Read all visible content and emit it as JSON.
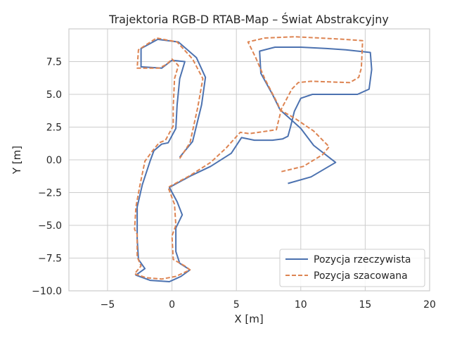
{
  "chart_data": {
    "type": "line",
    "title": "Trajektoria RGB-D RTAB-Map – Świat Abstrakcyjny",
    "xlabel": "X [m]",
    "ylabel": "Y [m]",
    "xlim": [
      -8,
      20
    ],
    "ylim": [
      -10,
      10
    ],
    "xticks": [
      -5,
      0,
      5,
      10,
      15,
      20
    ],
    "yticks": [
      -10,
      -7.5,
      -5,
      -2.5,
      0,
      2.5,
      5,
      7.5
    ],
    "xtick_labels": [
      "−5",
      "0",
      "5",
      "10",
      "15",
      "20"
    ],
    "ytick_labels": [
      "−10.0",
      "−7.5",
      "−5.0",
      "−2.5",
      "0.0",
      "2.5",
      "5.0",
      "7.5"
    ],
    "grid": true,
    "legend_position": "lower-right",
    "series": [
      {
        "name": "Pozycja rzeczywista",
        "color": "#4c72b0",
        "style": "solid",
        "x": [
          9.0,
          10.8,
          12.7,
          11.0,
          10.0,
          8.8,
          8.6,
          9.3,
          7.8,
          6.0,
          5.4,
          4.5,
          3.0,
          1.5,
          -0.2,
          0.4,
          0.8,
          0.3,
          0.4,
          1.0,
          1.4,
          0.7,
          -0.4,
          -1.8,
          -2.8,
          -2.7,
          -2.7,
          -2.3,
          -2.1,
          -1.7,
          -1.0,
          -0.5,
          0.3,
          1.5,
          2.1,
          2.5,
          2.6,
          1.9,
          0.4,
          -1.2,
          -2.3,
          -2.4,
          -1.0,
          0.0,
          1.1,
          0.3,
          0.2,
          0.6,
          1.5
        ],
        "y": [
          -1.8,
          -1.3,
          -0.2,
          1.1,
          2.4,
          3.5,
          3.9,
          4.5,
          5.0,
          6.5,
          7.6,
          8.3,
          8.6,
          8.5,
          7.6,
          7.6,
          7.4,
          6.8,
          5.5,
          4.5,
          3.3,
          2.0,
          1.2,
          0.0,
          -1.7,
          -2.8,
          -4.8,
          -5.9,
          -7.3,
          -8.3,
          -8.8,
          -9.0,
          -9.3,
          -9.2,
          -8.3,
          -7.5,
          -7.0,
          -6.2,
          -5.3,
          -4.3,
          -2.7,
          -1.3,
          -0.8,
          -0.2,
          0.5,
          1.5,
          2.5,
          4.0,
          5.2
        ],
        "xpath": [
          9.0,
          10.8,
          12.7,
          11.0,
          10.0,
          9.3,
          8.6,
          7.8,
          6.0,
          5.4,
          4.5,
          3.0,
          1.5,
          -0.2,
          0.4,
          0.8,
          0.3,
          0.4,
          1.0,
          1.4,
          0.7,
          -0.4,
          -1.8,
          -2.8,
          -2.7,
          -2.7,
          -2.3,
          -2.1,
          -2.9,
          -1.0,
          0.4,
          1.5,
          0.3,
          0.2,
          0.6,
          1.5
        ],
        "ypath": [
          -1.8,
          -1.3,
          -0.2,
          1.1,
          2.4,
          1.95,
          3.9,
          5.0,
          6.5,
          7.6,
          8.3,
          8.6,
          8.5,
          7.6,
          7.6,
          7.4,
          6.8,
          5.5,
          4.5,
          3.3,
          2.0,
          1.2,
          0.0,
          -1.7,
          -2.8,
          -4.8,
          -5.9,
          -7.3,
          -8.3,
          -8.8,
          -9.0,
          -9.3,
          -9.2,
          -8.3,
          -7.5,
          -7.0
        ]
      },
      {
        "name": "Pozycja szacowana",
        "color": "#dd8452",
        "style": "dashed",
        "x": [
          8.5,
          10.2,
          11.7,
          12.0,
          11.0,
          9.5,
          8.3,
          7.6,
          5.8,
          5.2,
          4.4,
          3.2,
          1.8,
          0.6,
          -0.3,
          0.2,
          0.3,
          0.0,
          0.2,
          0.7,
          1.2,
          0.6,
          -0.6,
          -2.2,
          -2.8,
          -3.0,
          -2.9,
          -2.7,
          -2.5,
          -2.0,
          -1.2,
          -0.3,
          0.4,
          1.3,
          1.6,
          2.0,
          2.3,
          1.6,
          0.3,
          -1.0,
          -2.0,
          -2.1,
          -0.9,
          0.2,
          1.3,
          0.5,
          0.4,
          0.9,
          1.7
        ],
        "y": [
          -0.9,
          -0.4,
          0.4,
          1.2,
          2.2,
          3.0,
          3.6,
          4.3,
          5.6,
          7.2,
          8.2,
          8.6,
          8.8,
          8.9,
          8.6,
          8.3,
          7.8,
          7.2,
          6.1,
          5.0,
          3.8,
          2.6,
          1.6,
          0.2,
          -1.4,
          -2.6,
          -4.6,
          -5.8,
          -7.1,
          -8.0,
          -8.7,
          -9.0,
          -9.0,
          -8.8,
          -8.2,
          -7.6,
          -6.9,
          -6.1,
          -5.2,
          -4.0,
          -2.5,
          -1.0,
          -0.4,
          0.3,
          1.0,
          2.0,
          3.2,
          4.5,
          5.8
        ],
        "xpath": [
          8.5,
          10.2,
          11.7,
          11.0,
          9.5,
          8.3,
          8.4,
          7.6,
          5.3,
          4.9,
          4.4,
          3.2,
          1.8,
          0.6,
          -0.3,
          0.2,
          0.3,
          0.0,
          0.2,
          0.7,
          1.2,
          0.6,
          -0.6,
          -2.2,
          -2.8,
          -3.0,
          -2.9,
          -2.7,
          -2.5,
          -3.0,
          -1.2,
          -0.3,
          0.4,
          1.3,
          0.3,
          0.2,
          0.5
        ],
        "ypath": [
          -0.9,
          -0.4,
          0.4,
          2.2,
          3.0,
          3.6,
          2.5,
          2.2,
          2.1,
          1.9,
          0.9,
          -0.1,
          -1.0,
          -2.0,
          -2.1,
          -3.0,
          -5.2,
          -6.8,
          -7.4,
          -7.6,
          -8.0,
          -8.7,
          -9.0,
          -9.1,
          -8.9,
          -8.3,
          -7.3,
          -5.6,
          -3.6,
          -2.2,
          -0.6,
          0.3,
          1.1,
          1.4,
          2.6,
          5.9,
          7.8
        ]
      }
    ],
    "blue_path": [
      [
        9.0,
        -1.8
      ],
      [
        10.8,
        -1.3
      ],
      [
        12.7,
        -0.2
      ],
      [
        11.0,
        1.1
      ],
      [
        10.0,
        2.4
      ],
      [
        9.1,
        3.2
      ],
      [
        8.4,
        3.8
      ],
      [
        7.8,
        5.0
      ],
      [
        6.9,
        6.6
      ],
      [
        6.8,
        8.3
      ],
      [
        8.0,
        8.6
      ],
      [
        10.0,
        8.6
      ],
      [
        12.0,
        8.5
      ],
      [
        13.5,
        8.4
      ],
      [
        15.4,
        8.2
      ],
      [
        15.5,
        6.9
      ],
      [
        15.3,
        5.4
      ],
      [
        14.4,
        5.0
      ],
      [
        10.9,
        5.0
      ],
      [
        10.0,
        4.7
      ],
      [
        9.5,
        3.7
      ],
      [
        9.2,
        2.5
      ],
      [
        9.0,
        1.8
      ],
      [
        8.6,
        1.6
      ],
      [
        7.8,
        1.5
      ],
      [
        6.4,
        1.5
      ],
      [
        5.4,
        1.7
      ],
      [
        4.6,
        0.5
      ],
      [
        3.0,
        -0.5
      ],
      [
        1.5,
        -1.2
      ],
      [
        -0.2,
        -2.1
      ],
      [
        0.4,
        -3.2
      ],
      [
        0.8,
        -4.2
      ],
      [
        0.3,
        -5.2
      ],
      [
        0.3,
        -7.0
      ],
      [
        0.6,
        -7.9
      ],
      [
        1.4,
        -8.4
      ],
      [
        0.7,
        -8.9
      ],
      [
        -0.2,
        -9.3
      ],
      [
        -1.7,
        -9.2
      ],
      [
        -2.8,
        -8.8
      ],
      [
        -2.1,
        -8.3
      ],
      [
        -2.6,
        -7.6
      ],
      [
        -2.7,
        -6.0
      ],
      [
        -2.7,
        -3.6
      ],
      [
        -2.3,
        -1.9
      ],
      [
        -1.7,
        -0.1
      ],
      [
        -1.4,
        0.7
      ],
      [
        -0.8,
        1.2
      ],
      [
        -0.3,
        1.3
      ],
      [
        0.3,
        2.4
      ],
      [
        0.4,
        4.2
      ],
      [
        0.6,
        6.2
      ],
      [
        1.0,
        7.5
      ],
      [
        0.0,
        7.6
      ],
      [
        -0.8,
        7.0
      ],
      [
        -2.4,
        7.1
      ],
      [
        -2.4,
        8.5
      ],
      [
        -1.1,
        9.2
      ],
      [
        0.5,
        9.0
      ],
      [
        1.9,
        7.8
      ],
      [
        2.6,
        6.3
      ],
      [
        2.3,
        4.2
      ],
      [
        1.6,
        1.4
      ],
      [
        0.6,
        0.2
      ]
    ],
    "orange_path": [
      [
        8.5,
        -0.9
      ],
      [
        10.2,
        -0.5
      ],
      [
        11.7,
        0.4
      ],
      [
        12.2,
        1.0
      ],
      [
        11.0,
        2.2
      ],
      [
        9.5,
        3.2
      ],
      [
        8.4,
        3.8
      ],
      [
        8.2,
        4.3
      ],
      [
        7.2,
        6.2
      ],
      [
        6.5,
        7.8
      ],
      [
        5.9,
        9.0
      ],
      [
        7.2,
        9.3
      ],
      [
        9.5,
        9.4
      ],
      [
        11.5,
        9.3
      ],
      [
        13.4,
        9.2
      ],
      [
        14.8,
        9.1
      ],
      [
        14.7,
        7.0
      ],
      [
        14.5,
        6.3
      ],
      [
        13.8,
        5.9
      ],
      [
        10.8,
        6.0
      ],
      [
        9.8,
        5.9
      ],
      [
        9.3,
        5.4
      ],
      [
        8.5,
        3.9
      ],
      [
        8.1,
        2.3
      ],
      [
        7.4,
        2.2
      ],
      [
        6.0,
        2.0
      ],
      [
        5.3,
        2.1
      ],
      [
        4.2,
        0.9
      ],
      [
        3.0,
        -0.2
      ],
      [
        1.4,
        -1.2
      ],
      [
        -0.3,
        -2.1
      ],
      [
        0.2,
        -3.4
      ],
      [
        0.3,
        -5.0
      ],
      [
        0.0,
        -5.8
      ],
      [
        0.1,
        -7.6
      ],
      [
        1.0,
        -8.1
      ],
      [
        1.4,
        -8.4
      ],
      [
        0.3,
        -8.9
      ],
      [
        -0.8,
        -9.1
      ],
      [
        -2.0,
        -9.0
      ],
      [
        -2.9,
        -8.7
      ],
      [
        -2.4,
        -8.1
      ],
      [
        -2.7,
        -7.4
      ],
      [
        -2.7,
        -5.7
      ],
      [
        -2.9,
        -5.3
      ],
      [
        -2.8,
        -3.6
      ],
      [
        -2.5,
        -2.0
      ],
      [
        -2.1,
        -0.1
      ],
      [
        -1.5,
        0.7
      ],
      [
        -1.0,
        1.3
      ],
      [
        -0.5,
        1.5
      ],
      [
        0.1,
        2.6
      ],
      [
        0.1,
        4.0
      ],
      [
        0.2,
        6.2
      ],
      [
        0.5,
        7.2
      ],
      [
        0.0,
        7.7
      ],
      [
        -0.4,
        7.3
      ],
      [
        -1.0,
        7.0
      ],
      [
        -2.7,
        7.0
      ],
      [
        -2.6,
        8.4
      ],
      [
        -1.2,
        9.3
      ],
      [
        0.4,
        9.0
      ],
      [
        1.6,
        7.7
      ],
      [
        2.4,
        6.2
      ],
      [
        2.0,
        4.0
      ],
      [
        1.4,
        1.3
      ],
      [
        0.6,
        0.1
      ]
    ]
  }
}
